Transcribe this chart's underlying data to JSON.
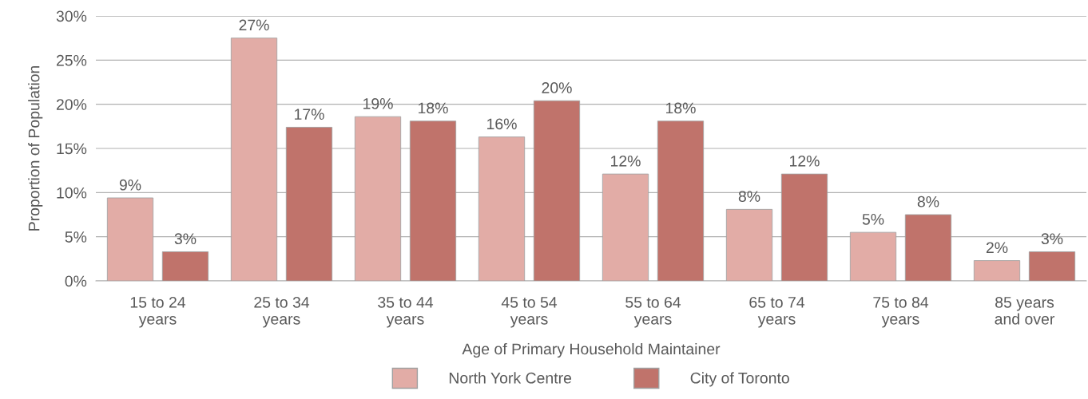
{
  "chart_data": {
    "type": "bar",
    "xlabel": "Age of Primary Household Maintainer",
    "ylabel": "Proportion of Population",
    "categories": [
      "15 to 24\nyears",
      "25 to 34\nyears",
      "35 to 44\nyears",
      "45 to 54\nyears",
      "55 to 64\nyears",
      "65 to 74\nyears",
      "75 to 84\nyears",
      "85 years\nand over"
    ],
    "series": [
      {
        "name": "North York Centre",
        "color": "#e2aca6",
        "values": [
          9.4,
          27.5,
          18.6,
          16.3,
          12.1,
          8.1,
          5.5,
          2.3
        ],
        "value_labels": [
          "9%",
          "27%",
          "19%",
          "16%",
          "12%",
          "8%",
          "5%",
          "2%"
        ]
      },
      {
        "name": "City of Toronto",
        "color": "#c0736b",
        "values": [
          3.3,
          17.4,
          18.1,
          20.4,
          18.1,
          12.1,
          7.5,
          3.3
        ],
        "value_labels": [
          "3%",
          "17%",
          "18%",
          "20%",
          "18%",
          "12%",
          "8%",
          "3%"
        ]
      }
    ],
    "ylim": [
      0,
      30
    ],
    "yticks": [
      {
        "value": 0,
        "label": "0%"
      },
      {
        "value": 5,
        "label": "5%"
      },
      {
        "value": 10,
        "label": "10%"
      },
      {
        "value": 15,
        "label": "15%"
      },
      {
        "value": 20,
        "label": "20%"
      },
      {
        "value": 25,
        "label": "25%"
      },
      {
        "value": 30,
        "label": "30%"
      }
    ],
    "grid": "y",
    "legend": "bottom"
  }
}
